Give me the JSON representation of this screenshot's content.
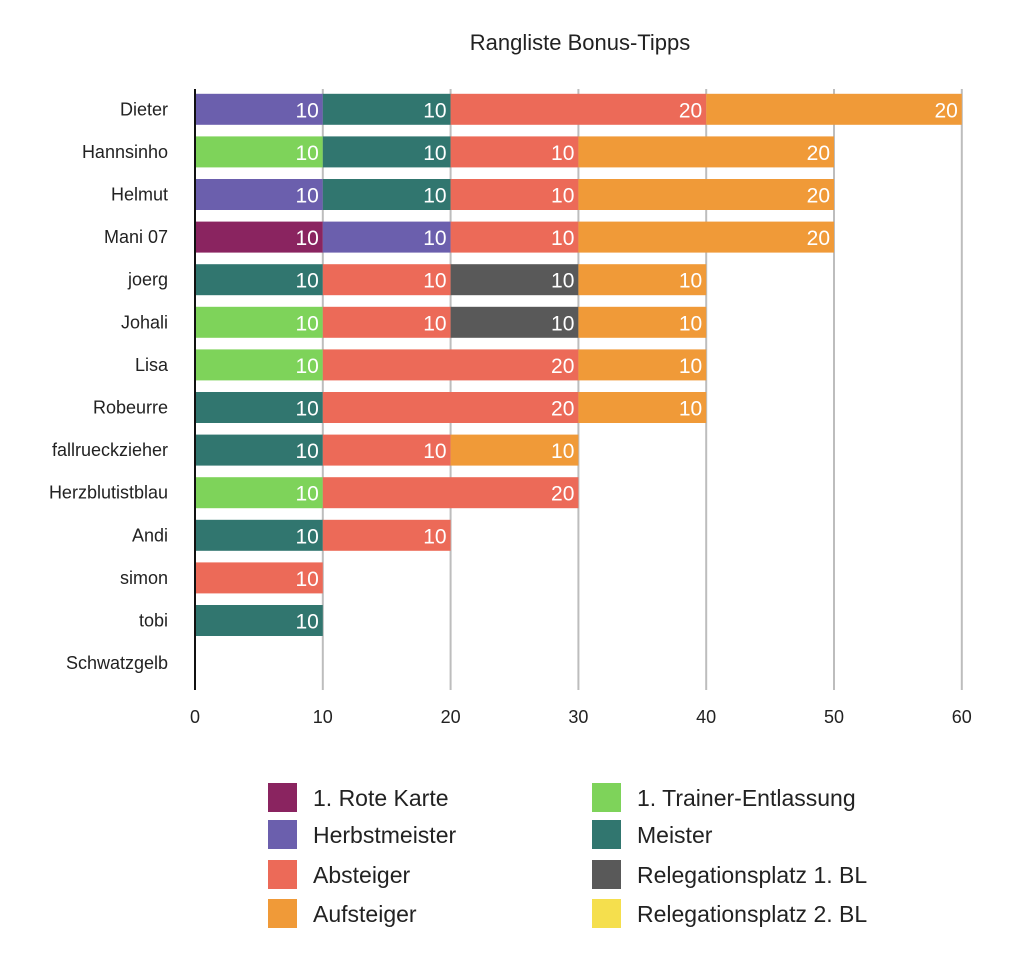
{
  "chart_data": {
    "type": "bar",
    "orientation": "horizontal",
    "stacked": true,
    "title": "Rangliste Bonus-Tipps",
    "xlabel": "",
    "ylabel": "",
    "xlim": [
      0,
      60
    ],
    "xticks": [
      0,
      10,
      20,
      30,
      40,
      50,
      60
    ],
    "grid": true,
    "legend_position": "bottom",
    "categories": [
      "Dieter",
      "Hannsinho",
      "Helmut",
      "Mani 07",
      "joerg",
      "Johali",
      "Lisa",
      "Robeurre",
      "fallrueckzieher",
      "Herzblutistblau",
      "Andi",
      "simon",
      "tobi",
      "Schwatzgelb"
    ],
    "series": [
      {
        "name": "1. Rote Karte",
        "color": "#8a2460",
        "values": [
          0,
          0,
          0,
          10,
          0,
          0,
          0,
          0,
          0,
          0,
          0,
          0,
          0,
          0
        ]
      },
      {
        "name": "1. Trainer-Entlassung",
        "color": "#7ed35a",
        "values": [
          0,
          10,
          0,
          0,
          0,
          10,
          10,
          0,
          0,
          10,
          0,
          0,
          0,
          0
        ]
      },
      {
        "name": "Herbstmeister",
        "color": "#6b5fad",
        "values": [
          10,
          0,
          10,
          10,
          0,
          0,
          0,
          0,
          0,
          0,
          0,
          0,
          0,
          0
        ]
      },
      {
        "name": "Meister",
        "color": "#31766f",
        "values": [
          10,
          10,
          10,
          0,
          10,
          0,
          0,
          10,
          10,
          0,
          10,
          0,
          10,
          0
        ]
      },
      {
        "name": "Absteiger",
        "color": "#ec6a58",
        "values": [
          20,
          10,
          10,
          10,
          10,
          10,
          20,
          20,
          10,
          20,
          10,
          10,
          0,
          0
        ]
      },
      {
        "name": "Relegationsplatz 1. BL",
        "color": "#595959",
        "values": [
          0,
          0,
          0,
          0,
          10,
          10,
          0,
          0,
          0,
          0,
          0,
          0,
          0,
          0
        ]
      },
      {
        "name": "Aufsteiger",
        "color": "#f09a38",
        "values": [
          20,
          20,
          20,
          20,
          10,
          10,
          10,
          10,
          10,
          0,
          0,
          0,
          0,
          0
        ]
      },
      {
        "name": "Relegationsplatz 2. BL",
        "color": "#f5df4d",
        "values": [
          0,
          0,
          0,
          0,
          0,
          0,
          0,
          0,
          0,
          0,
          0,
          0,
          0,
          0
        ]
      }
    ],
    "legend_order": [
      "1. Rote Karte",
      "1. Trainer-Entlassung",
      "Herbstmeister",
      "Meister",
      "Absteiger",
      "Relegationsplatz 1. BL",
      "Aufsteiger",
      "Relegationsplatz 2. BL"
    ]
  }
}
